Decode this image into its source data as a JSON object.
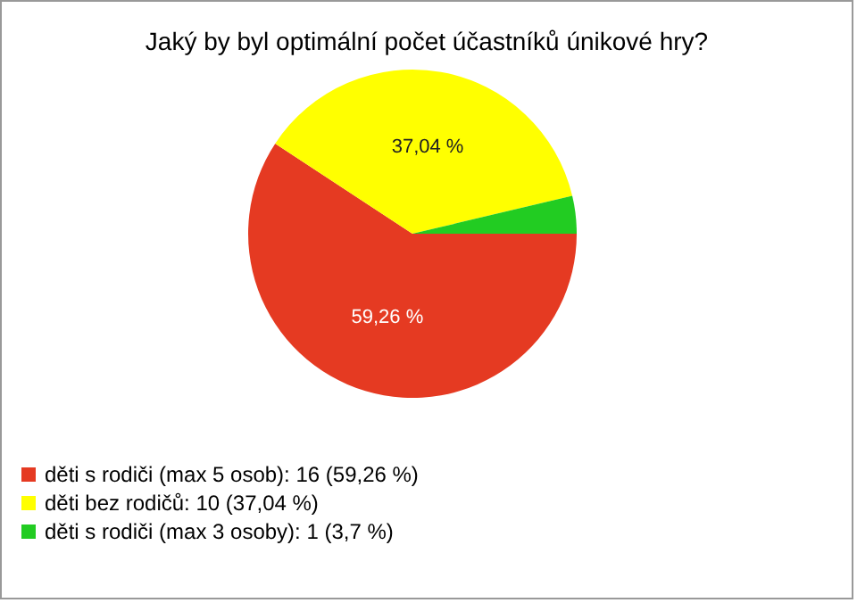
{
  "chart_data": {
    "type": "pie",
    "title": "Jaký by byl optimální počet účastníků únikové hry?",
    "categories": [
      "děti s rodiči (max 5 osob): 16 (59,26 %)",
      "děti bez rodičů: 10 (37,04 %)",
      "děti s rodiči (max 3 osoby): 1 (3,7 %)"
    ],
    "values": [
      59.26,
      37.04,
      3.7
    ],
    "colors": [
      "#e53a22",
      "#ffff00",
      "#22cc22"
    ],
    "value_labels": [
      "59,26 %",
      "37,04 %",
      null
    ],
    "legend": "bottom left"
  }
}
